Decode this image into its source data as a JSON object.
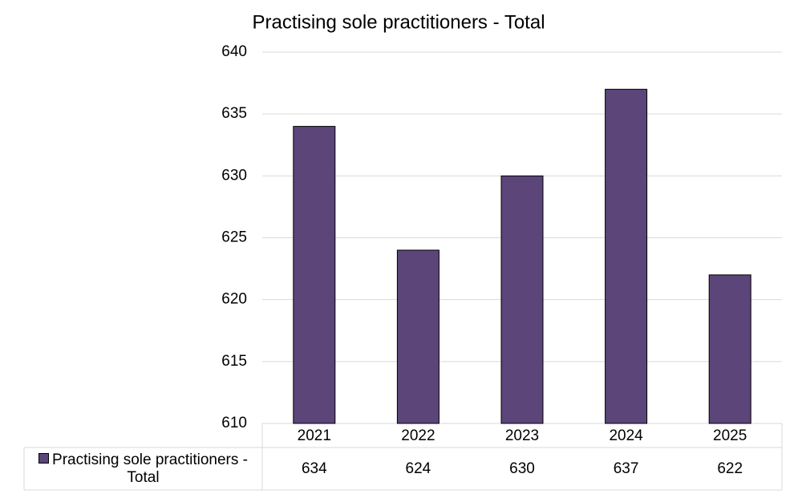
{
  "chart_data": {
    "type": "bar",
    "title": "Practising sole practitioners - Total",
    "categories": [
      "2021",
      "2022",
      "2023",
      "2024",
      "2025"
    ],
    "series": [
      {
        "name": "Practising sole practitioners - Total",
        "color": "#5b4579",
        "values": [
          634,
          624,
          630,
          637,
          622
        ]
      }
    ],
    "ylim": [
      610,
      640
    ],
    "yticks": [
      610,
      615,
      620,
      625,
      630,
      635,
      640
    ],
    "grid": true,
    "data_table": true
  }
}
